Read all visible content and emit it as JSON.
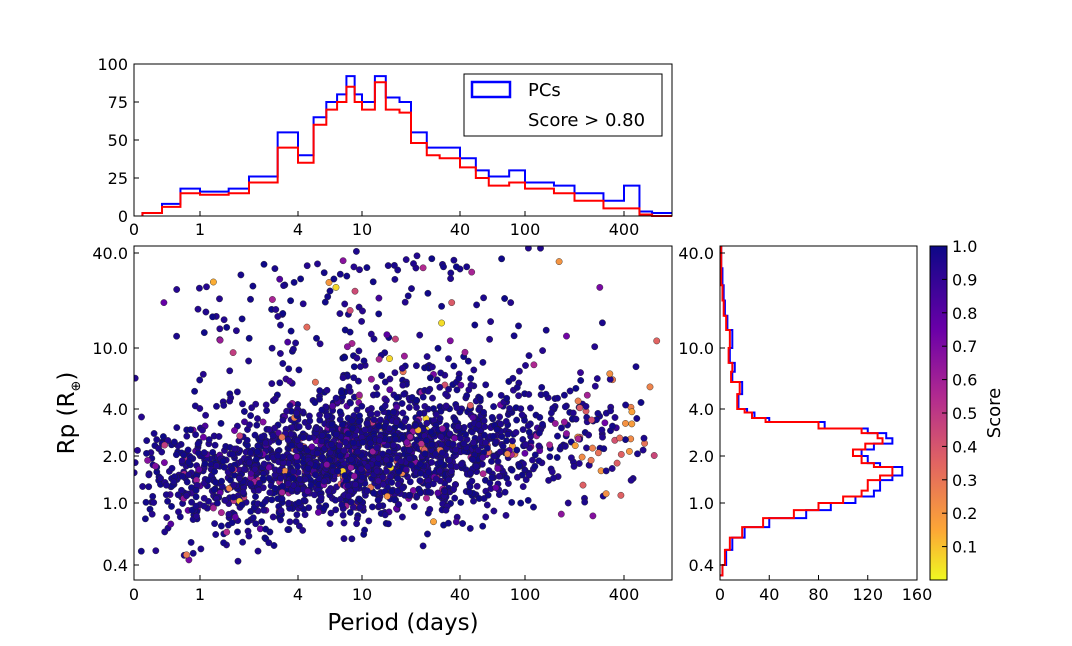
{
  "chart_data": [
    {
      "panel": "top-histogram",
      "type": "histogram",
      "x_scale": "log",
      "x_ticks": [
        "0",
        "1",
        "4",
        "10",
        "40",
        "100",
        "400"
      ],
      "y_ticks": [
        "0",
        "25",
        "50",
        "75",
        "100"
      ],
      "ylim": [
        0,
        100
      ],
      "legend": {
        "position": "top-right",
        "entries": [
          "PCs",
          "Score > 0.80"
        ]
      },
      "colors": {
        "PCs": "#0000ff",
        "Score > 0.80": "#ff0000"
      },
      "x": [
        0.35,
        0.5,
        0.7,
        1.0,
        1.5,
        2.0,
        2.5,
        3.0,
        4.0,
        5.0,
        6.0,
        7.0,
        8.0,
        9.0,
        10.0,
        12.0,
        14.0,
        17.0,
        20.0,
        25.0,
        30.0,
        40.0,
        50.0,
        60.0,
        80.0,
        100.0,
        150.0,
        200.0,
        300.0,
        400.0,
        500.0,
        600.0
      ],
      "series": [
        {
          "name": "PCs",
          "values": [
            2,
            8,
            18,
            16,
            18,
            26,
            26,
            55,
            40,
            65,
            75,
            80,
            92,
            80,
            75,
            92,
            78,
            75,
            55,
            45,
            45,
            38,
            30,
            26,
            30,
            22,
            20,
            15,
            10,
            20,
            3,
            2
          ]
        },
        {
          "name": "Score > 0.80",
          "values": [
            2,
            6,
            15,
            14,
            15,
            22,
            22,
            45,
            35,
            60,
            70,
            75,
            85,
            75,
            70,
            88,
            70,
            68,
            48,
            40,
            38,
            32,
            25,
            20,
            22,
            18,
            15,
            10,
            5,
            5,
            1,
            0
          ]
        }
      ]
    },
    {
      "panel": "scatter",
      "type": "scatter",
      "x_scale": "log",
      "y_scale": "log",
      "xlabel": "Period (days)",
      "ylabel": "Rp (R",
      "ylabel_symbol": "⊕",
      "ylabel_close": ")",
      "x_ticks": [
        "0",
        "1",
        "4",
        "10",
        "40",
        "100",
        "400"
      ],
      "y_ticks": [
        "0.4",
        "1.0",
        "2.0",
        "4.0",
        "10.0",
        "40.0"
      ],
      "xlim": [
        0.3,
        800
      ],
      "ylim": [
        0.33,
        45
      ],
      "colormap": "plasma_r",
      "color_key": "score",
      "density": [
        {
          "period": 0.5,
          "radius": 1.5,
          "weight": 0.3
        },
        {
          "period": 1.0,
          "radius": 1.4,
          "weight": 0.6
        },
        {
          "period": 2.0,
          "radius": 1.5,
          "weight": 1.0
        },
        {
          "period": 4.0,
          "radius": 1.8,
          "weight": 1.4
        },
        {
          "period": 8.0,
          "radius": 2.0,
          "weight": 1.6
        },
        {
          "period": 15.0,
          "radius": 2.2,
          "weight": 1.6
        },
        {
          "period": 30.0,
          "radius": 2.3,
          "weight": 1.2
        },
        {
          "period": 60.0,
          "radius": 2.4,
          "weight": 0.8
        },
        {
          "period": 120.0,
          "radius": 2.5,
          "weight": 0.5
        },
        {
          "period": 300.0,
          "radius": 2.5,
          "weight": 0.3
        }
      ]
    },
    {
      "panel": "right-histogram",
      "type": "histogram",
      "orientation": "horizontal",
      "y_scale": "log",
      "x_ticks": [
        "0",
        "40",
        "80",
        "120",
        "160"
      ],
      "y_ticks": [
        "0.4",
        "1.0",
        "2.0",
        "4.0",
        "10.0",
        "40.0"
      ],
      "xlim": [
        0,
        160
      ],
      "y": [
        0.35,
        0.4,
        0.5,
        0.6,
        0.7,
        0.8,
        0.9,
        1.0,
        1.1,
        1.2,
        1.4,
        1.5,
        1.7,
        1.8,
        2.0,
        2.2,
        2.4,
        2.6,
        2.8,
        3.0,
        3.3,
        3.5,
        3.8,
        4.0,
        5.0,
        6.0,
        7.0,
        8.0,
        10.0,
        13.0,
        16.0,
        20.0,
        25.0,
        32.0,
        40.0
      ],
      "series": [
        {
          "name": "PCs",
          "values": [
            2,
            5,
            10,
            20,
            40,
            70,
            90,
            110,
            125,
            130,
            140,
            148,
            130,
            120,
            115,
            125,
            140,
            135,
            120,
            85,
            40,
            28,
            22,
            15,
            18,
            10,
            12,
            8,
            10,
            6,
            4,
            3,
            2,
            1,
            1
          ]
        },
        {
          "name": "Score > 0.80",
          "values": [
            2,
            4,
            8,
            18,
            35,
            60,
            80,
            100,
            115,
            120,
            130,
            140,
            125,
            115,
            108,
            118,
            132,
            128,
            115,
            80,
            37,
            26,
            20,
            14,
            16,
            9,
            10,
            7,
            8,
            5,
            3,
            2,
            1,
            1,
            1
          ]
        }
      ]
    },
    {
      "panel": "colorbar",
      "type": "colorbar",
      "label": "Score",
      "ticks": [
        "0.1",
        "0.2",
        "0.3",
        "0.4",
        "0.5",
        "0.6",
        "0.7",
        "0.8",
        "0.9",
        "1.0"
      ],
      "range": [
        0.0,
        1.0
      ]
    }
  ]
}
